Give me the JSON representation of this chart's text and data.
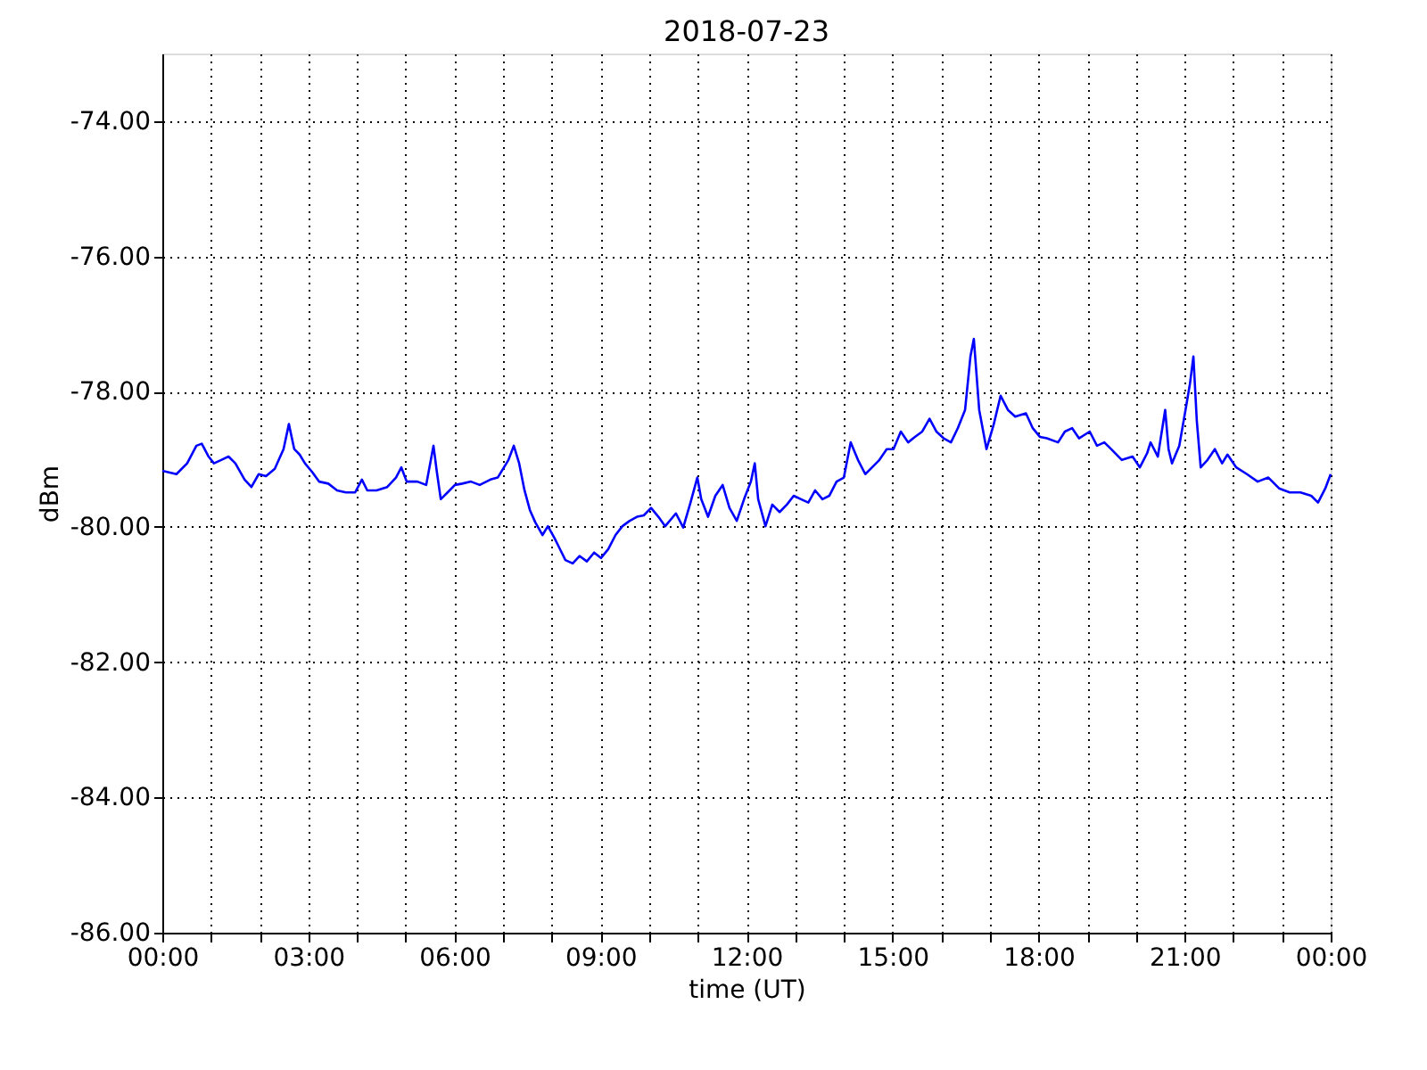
{
  "chart_data": {
    "type": "line",
    "title": "2018-07-23",
    "xlabel": "time (UT)",
    "ylabel": "dBm",
    "xlim": [
      0,
      24
    ],
    "ylim": [
      -86,
      -73
    ],
    "xticks": [
      {
        "value": 0,
        "label": "00:00"
      },
      {
        "value": 1,
        "label": null
      },
      {
        "value": 2,
        "label": null
      },
      {
        "value": 3,
        "label": "03:00"
      },
      {
        "value": 4,
        "label": null
      },
      {
        "value": 5,
        "label": null
      },
      {
        "value": 6,
        "label": "06:00"
      },
      {
        "value": 7,
        "label": null
      },
      {
        "value": 8,
        "label": null
      },
      {
        "value": 9,
        "label": "09:00"
      },
      {
        "value": 10,
        "label": null
      },
      {
        "value": 11,
        "label": null
      },
      {
        "value": 12,
        "label": "12:00"
      },
      {
        "value": 13,
        "label": null
      },
      {
        "value": 14,
        "label": null
      },
      {
        "value": 15,
        "label": "15:00"
      },
      {
        "value": 16,
        "label": null
      },
      {
        "value": 17,
        "label": null
      },
      {
        "value": 18,
        "label": "18:00"
      },
      {
        "value": 19,
        "label": null
      },
      {
        "value": 20,
        "label": null
      },
      {
        "value": 21,
        "label": "21:00"
      },
      {
        "value": 22,
        "label": null
      },
      {
        "value": 23,
        "label": null
      },
      {
        "value": 24,
        "label": "00:00"
      }
    ],
    "yticks": [
      {
        "value": -86,
        "label": "-86.00"
      },
      {
        "value": -84,
        "label": "-84.00"
      },
      {
        "value": -82,
        "label": "-82.00"
      },
      {
        "value": -80,
        "label": "-80.00"
      },
      {
        "value": -78,
        "label": "-78.00"
      },
      {
        "value": -76,
        "label": "-76.00"
      },
      {
        "value": -74,
        "label": "-74.00"
      }
    ],
    "grid": true,
    "marker": "none",
    "line_style": "solid",
    "series": [
      {
        "color": "#0000ff",
        "x": [
          0,
          0.29,
          0.51,
          0.7,
          0.81,
          0.95,
          1.06,
          1.21,
          1.36,
          1.5,
          1.69,
          1.83,
          1.98,
          2.13,
          2.31,
          2.49,
          2.6,
          2.71,
          2.82,
          2.93,
          3.08,
          3.22,
          3.41,
          3.59,
          3.77,
          3.96,
          4.1,
          4.21,
          4.4,
          4.62,
          4.8,
          4.91,
          5.02,
          5.24,
          5.42,
          5.57,
          5.64,
          5.72,
          5.86,
          6.01,
          6.16,
          6.34,
          6.52,
          6.74,
          6.89,
          7.11,
          7.22,
          7.33,
          7.44,
          7.55,
          7.66,
          7.81,
          7.92,
          8.06,
          8.17,
          8.28,
          8.43,
          8.57,
          8.72,
          8.87,
          9.01,
          9.16,
          9.31,
          9.45,
          9.6,
          9.75,
          9.89,
          10.04,
          10.19,
          10.33,
          10.55,
          10.7,
          10.85,
          10.99,
          11.07,
          11.21,
          11.36,
          11.51,
          11.65,
          11.8,
          11.95,
          12.09,
          12.17,
          12.24,
          12.39,
          12.53,
          12.68,
          12.83,
          12.97,
          13.12,
          13.27,
          13.41,
          13.56,
          13.7,
          13.85,
          14.0,
          14.14,
          14.29,
          14.44,
          14.58,
          14.73,
          14.88,
          15.02,
          15.17,
          15.32,
          15.46,
          15.61,
          15.76,
          15.9,
          16.05,
          16.2,
          16.34,
          16.49,
          16.6,
          16.67,
          16.78,
          16.93,
          17.08,
          17.22,
          17.37,
          17.52,
          17.74,
          17.88,
          18.03,
          18.17,
          18.4,
          18.54,
          18.69,
          18.83,
          19.05,
          19.2,
          19.35,
          19.49,
          19.71,
          19.93,
          20.08,
          20.23,
          20.3,
          20.45,
          20.6,
          20.67,
          20.74,
          20.89,
          21.03,
          21.11,
          21.18,
          21.25,
          21.33,
          21.47,
          21.62,
          21.77,
          21.88,
          22.06,
          22.28,
          22.5,
          22.72,
          22.94,
          23.16,
          23.38,
          23.6,
          23.74,
          23.89,
          24
        ],
        "values": [
          -79.17,
          -79.22,
          -79.06,
          -78.8,
          -78.77,
          -78.96,
          -79.06,
          -79.01,
          -78.96,
          -79.06,
          -79.3,
          -79.41,
          -79.22,
          -79.25,
          -79.14,
          -78.85,
          -78.48,
          -78.85,
          -78.93,
          -79.06,
          -79.19,
          -79.33,
          -79.36,
          -79.46,
          -79.49,
          -79.49,
          -79.3,
          -79.46,
          -79.46,
          -79.41,
          -79.27,
          -79.12,
          -79.33,
          -79.33,
          -79.38,
          -78.8,
          -79.19,
          -79.59,
          -79.49,
          -79.38,
          -79.36,
          -79.33,
          -79.38,
          -79.3,
          -79.27,
          -79.01,
          -78.8,
          -79.06,
          -79.46,
          -79.75,
          -79.93,
          -80.12,
          -79.99,
          -80.17,
          -80.33,
          -80.49,
          -80.54,
          -80.43,
          -80.51,
          -80.38,
          -80.46,
          -80.33,
          -80.12,
          -79.99,
          -79.91,
          -79.85,
          -79.83,
          -79.72,
          -79.85,
          -79.99,
          -79.8,
          -80.01,
          -79.64,
          -79.27,
          -79.59,
          -79.85,
          -79.54,
          -79.38,
          -79.72,
          -79.91,
          -79.59,
          -79.33,
          -79.06,
          -79.59,
          -79.99,
          -79.67,
          -79.78,
          -79.67,
          -79.54,
          -79.59,
          -79.64,
          -79.46,
          -79.59,
          -79.54,
          -79.33,
          -79.27,
          -78.75,
          -79.01,
          -79.22,
          -79.12,
          -79.01,
          -78.85,
          -78.85,
          -78.59,
          -78.75,
          -78.67,
          -78.59,
          -78.4,
          -78.59,
          -78.69,
          -78.75,
          -78.54,
          -78.27,
          -77.48,
          -77.22,
          -78.27,
          -78.85,
          -78.48,
          -78.06,
          -78.27,
          -78.37,
          -78.32,
          -78.54,
          -78.67,
          -78.69,
          -78.75,
          -78.59,
          -78.54,
          -78.69,
          -78.59,
          -78.8,
          -78.75,
          -78.85,
          -79.01,
          -78.96,
          -79.12,
          -78.91,
          -78.75,
          -78.96,
          -78.27,
          -78.85,
          -79.06,
          -78.8,
          -78.22,
          -77.88,
          -77.48,
          -78.43,
          -79.12,
          -79.01,
          -78.85,
          -79.06,
          -78.93,
          -79.12,
          -79.22,
          -79.33,
          -79.27,
          -79.43,
          -79.49,
          -79.49,
          -79.54,
          -79.64,
          -79.43,
          -79.22
        ]
      }
    ]
  }
}
